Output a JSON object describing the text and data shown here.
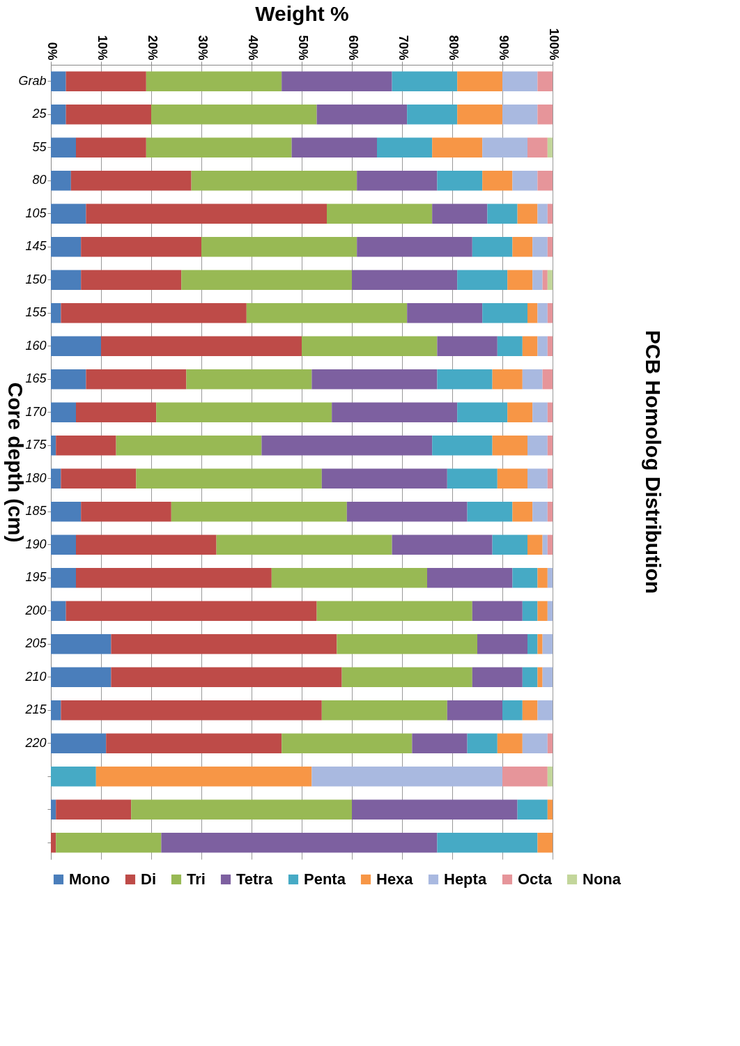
{
  "chart_data": {
    "type": "bar",
    "orientation": "horizontal",
    "stacked": true,
    "title": "PCB Homolog Distribution",
    "xlabel": "Weight %",
    "ylabel": "Core depth (cm)",
    "categories": [
      "Grab",
      "25",
      "55",
      "80",
      "105",
      "145",
      "150",
      "155",
      "160",
      "165",
      "170",
      "175",
      "180",
      "185",
      "190",
      "195",
      "200",
      "205",
      "210",
      "215",
      "220",
      null,
      null,
      null
    ],
    "xlim": [
      0,
      100
    ],
    "xticks": [
      {
        "value": 0,
        "label": "0%"
      },
      {
        "value": 10,
        "label": "10%"
      },
      {
        "value": 20,
        "label": "20%"
      },
      {
        "value": 30,
        "label": "30%"
      },
      {
        "value": 40,
        "label": "40%"
      },
      {
        "value": 50,
        "label": "50%"
      },
      {
        "value": 60,
        "label": "60%"
      },
      {
        "value": 70,
        "label": "70%"
      },
      {
        "value": 80,
        "label": "80%"
      },
      {
        "value": 90,
        "label": "90%"
      },
      {
        "value": 100,
        "label": "100%"
      }
    ],
    "grid": "x",
    "legend": "bottom",
    "series": [
      {
        "name": "Mono",
        "color": "#4a7ebb",
        "values": [
          3,
          3,
          5,
          4,
          7,
          6,
          6,
          2,
          10,
          7,
          5,
          1,
          2,
          6,
          5,
          5,
          3,
          12,
          12,
          2,
          11,
          0,
          1,
          0
        ]
      },
      {
        "name": "Di",
        "color": "#be4b48",
        "values": [
          16,
          17,
          14,
          24,
          48,
          24,
          20,
          37,
          40,
          20,
          16,
          12,
          15,
          18,
          28,
          39,
          50,
          45,
          46,
          52,
          35,
          0,
          15,
          1
        ]
      },
      {
        "name": "Tri",
        "color": "#98b954",
        "values": [
          27,
          33,
          29,
          33,
          21,
          31,
          34,
          32,
          27,
          25,
          35,
          29,
          37,
          35,
          35,
          31,
          31,
          28,
          26,
          25,
          26,
          0,
          44,
          21
        ]
      },
      {
        "name": "Tetra",
        "color": "#7d60a0",
        "values": [
          22,
          18,
          17,
          16,
          11,
          23,
          21,
          15,
          12,
          25,
          25,
          34,
          25,
          24,
          20,
          17,
          10,
          10,
          10,
          11,
          11,
          0,
          33,
          55
        ]
      },
      {
        "name": "Penta",
        "color": "#46aac5",
        "values": [
          13,
          10,
          11,
          9,
          6,
          8,
          10,
          9,
          5,
          11,
          10,
          12,
          10,
          9,
          7,
          5,
          3,
          2,
          3,
          4,
          6,
          9,
          6,
          20
        ]
      },
      {
        "name": "Hexa",
        "color": "#f79646",
        "values": [
          9,
          9,
          10,
          6,
          4,
          4,
          5,
          2,
          3,
          6,
          5,
          7,
          6,
          4,
          3,
          2,
          2,
          1,
          1,
          3,
          5,
          43,
          1,
          3
        ]
      },
      {
        "name": "Hepta",
        "color": "#a9b9e0",
        "values": [
          7,
          7,
          9,
          5,
          2,
          3,
          2,
          2,
          2,
          4,
          3,
          4,
          4,
          3,
          1,
          1,
          1,
          2,
          2,
          3,
          5,
          38,
          0,
          0
        ]
      },
      {
        "name": "Octa",
        "color": "#e6959a",
        "values": [
          3,
          3,
          4,
          3,
          1,
          1,
          1,
          1,
          1,
          2,
          1,
          1,
          1,
          1,
          1,
          0,
          0,
          0,
          0,
          0,
          1,
          9,
          0,
          0
        ]
      },
      {
        "name": "Nona",
        "color": "#c3d69b",
        "values": [
          0,
          0,
          1,
          0,
          0,
          0,
          1,
          0,
          0,
          0,
          0,
          0,
          0,
          0,
          0,
          0,
          0,
          0,
          0,
          0,
          0,
          1,
          0,
          0
        ]
      }
    ]
  }
}
